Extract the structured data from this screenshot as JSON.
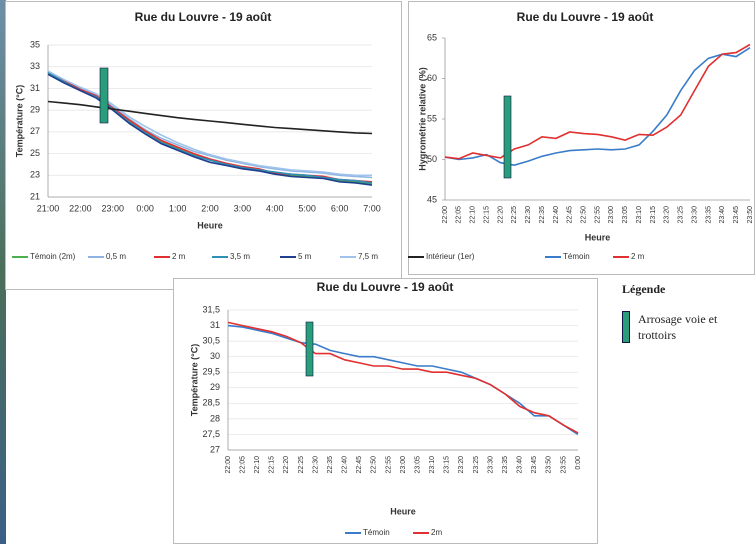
{
  "chart_data": [
    {
      "type": "line",
      "title": "Rue du Louvre - 19 août",
      "ylabel": "Température (°C)",
      "xlabel": "Heure",
      "grid": true,
      "categories": [
        "21:00",
        null,
        "22:00",
        null,
        "23:00",
        null,
        "0:00",
        null,
        "1:00",
        null,
        "2:00",
        null,
        "3:00",
        null,
        "4:00",
        null,
        "5:00",
        null,
        "6:00",
        null,
        "7:00"
      ],
      "ylim": [
        21,
        35
      ],
      "yticks": [
        21,
        23,
        25,
        27,
        29,
        31,
        33,
        35
      ],
      "series": [
        {
          "name": "Témoin (2m)",
          "color": "#4caf50",
          "values": [
            32.4,
            31.6,
            30.9,
            30.3,
            29.2,
            28.0,
            27.0,
            26.1,
            25.5,
            24.9,
            24.4,
            24.0,
            23.7,
            23.5,
            23.2,
            23.0,
            22.9,
            22.8,
            22.5,
            22.4,
            22.2
          ]
        },
        {
          "name": "0,5 m",
          "color": "#8fb4e3",
          "values": [
            32.5,
            31.7,
            31.0,
            30.4,
            29.3,
            28.2,
            27.2,
            26.4,
            25.8,
            25.2,
            24.8,
            24.4,
            24.1,
            23.8,
            23.6,
            23.4,
            23.3,
            23.2,
            23.0,
            22.9,
            22.8
          ]
        },
        {
          "name": "2 m",
          "color": "#e03030",
          "values": [
            32.5,
            31.7,
            30.9,
            30.3,
            29.2,
            28.1,
            27.1,
            26.2,
            25.6,
            25.0,
            24.5,
            24.1,
            23.8,
            23.6,
            23.2,
            23.1,
            23.0,
            22.9,
            22.6,
            22.5,
            22.4
          ]
        },
        {
          "name": "3,5 m",
          "color": "#2f8fb5",
          "values": [
            32.5,
            31.6,
            30.8,
            30.2,
            29.1,
            27.9,
            26.9,
            26.0,
            25.4,
            24.8,
            24.4,
            24.0,
            23.7,
            23.5,
            23.3,
            23.1,
            23.0,
            22.8,
            22.6,
            22.5,
            22.3
          ]
        },
        {
          "name": "5 m",
          "color": "#1f3f8f",
          "values": [
            32.3,
            31.5,
            30.8,
            30.1,
            29.0,
            27.8,
            26.8,
            25.9,
            25.3,
            24.7,
            24.2,
            23.9,
            23.6,
            23.4,
            23.1,
            22.9,
            22.8,
            22.7,
            22.4,
            22.3,
            22.1
          ]
        },
        {
          "name": "7,5 m",
          "color": "#9fc3ea",
          "values": [
            32.6,
            31.8,
            31.1,
            30.5,
            29.5,
            28.4,
            27.5,
            26.7,
            26.0,
            25.4,
            24.9,
            24.5,
            24.2,
            23.9,
            23.7,
            23.5,
            23.4,
            23.3,
            23.1,
            23.0,
            23.0
          ]
        },
        {
          "name": "Intérieur (1er)",
          "color": "#222222",
          "values": [
            29.8,
            29.65,
            29.5,
            29.3,
            29.1,
            28.9,
            28.7,
            28.5,
            28.3,
            28.15,
            28.0,
            27.85,
            27.7,
            27.55,
            27.4,
            27.3,
            27.2,
            27.1,
            27.0,
            26.9,
            26.85
          ]
        }
      ]
    },
    {
      "type": "line",
      "title": "Rue du Louvre - 19 août",
      "ylabel": "Hygrométrie relative (%)",
      "xlabel": "Heure",
      "grid": false,
      "categories": [
        "22:00",
        "22:05",
        "22:10",
        "22:15",
        "22:20",
        "22:25",
        "22:30",
        "22:35",
        "22:40",
        "22:45",
        "22:50",
        "22:55",
        "23:00",
        "23:05",
        "23:10",
        "23:15",
        "23:20",
        "23:25",
        "23:30",
        "23:35",
        "23:40",
        "23:45",
        "23:50"
      ],
      "ylim": [
        45,
        65
      ],
      "yticks": [
        45,
        50,
        55,
        60,
        65
      ],
      "series": [
        {
          "name": "Témoin",
          "color": "#3a7cc9",
          "values": [
            50.3,
            50.0,
            50.2,
            50.6,
            49.6,
            49.3,
            49.8,
            50.4,
            50.8,
            51.1,
            51.2,
            51.3,
            51.2,
            51.3,
            51.8,
            53.5,
            55.5,
            58.5,
            61.0,
            62.5,
            63.0,
            62.7,
            63.8
          ]
        },
        {
          "name": "2 m",
          "color": "#e03030",
          "values": [
            50.3,
            50.1,
            50.8,
            50.5,
            50.2,
            51.3,
            51.8,
            52.8,
            52.6,
            53.4,
            53.2,
            53.1,
            52.8,
            52.4,
            53.1,
            53.0,
            54.0,
            55.5,
            58.5,
            61.5,
            63.0,
            63.2,
            64.2
          ]
        }
      ]
    },
    {
      "type": "line",
      "title": "Rue du Louvre - 19 août",
      "ylabel": "Température (°C)",
      "xlabel": "Heure",
      "grid": true,
      "categories": [
        "22:00",
        "22:05",
        "22:10",
        "22:15",
        "22:20",
        "22:25",
        "22:30",
        "22:35",
        "22:40",
        "22:45",
        "22:50",
        "22:55",
        "23:00",
        "23:05",
        "23:10",
        "23:15",
        "23:20",
        "23:25",
        "23:30",
        "23:35",
        "23:40",
        "23:45",
        "23:50",
        "23:55",
        "0:00"
      ],
      "ylim": [
        27,
        31.5
      ],
      "yticks": [
        27,
        {
          "value": 27.5,
          "label": "27,5"
        },
        28,
        {
          "value": 28.5,
          "label": "28,5"
        },
        29,
        {
          "value": 29.5,
          "label": "29,5"
        },
        30,
        {
          "value": 30.5,
          "label": "30,5"
        },
        31,
        {
          "value": 31.5,
          "label": "31,5"
        }
      ],
      "series": [
        {
          "name": "Témoin",
          "color": "#3a7cc9",
          "values": [
            31.0,
            30.95,
            30.85,
            30.75,
            30.6,
            30.45,
            30.4,
            30.2,
            30.1,
            30.0,
            30.0,
            29.9,
            29.8,
            29.7,
            29.7,
            29.6,
            29.5,
            29.3,
            29.1,
            28.8,
            28.5,
            28.1,
            28.1,
            27.8,
            27.5
          ]
        },
        {
          "name": "2m",
          "color": "#e03030",
          "values": [
            31.1,
            31.0,
            30.9,
            30.8,
            30.65,
            30.45,
            30.1,
            30.1,
            29.9,
            29.8,
            29.7,
            29.7,
            29.6,
            29.6,
            29.5,
            29.5,
            29.4,
            29.3,
            29.1,
            28.8,
            28.4,
            28.2,
            28.1,
            27.8,
            27.55
          ]
        }
      ]
    }
  ],
  "legend": {
    "title": "Légende",
    "label": "Arrosage voie et trottoirs"
  }
}
